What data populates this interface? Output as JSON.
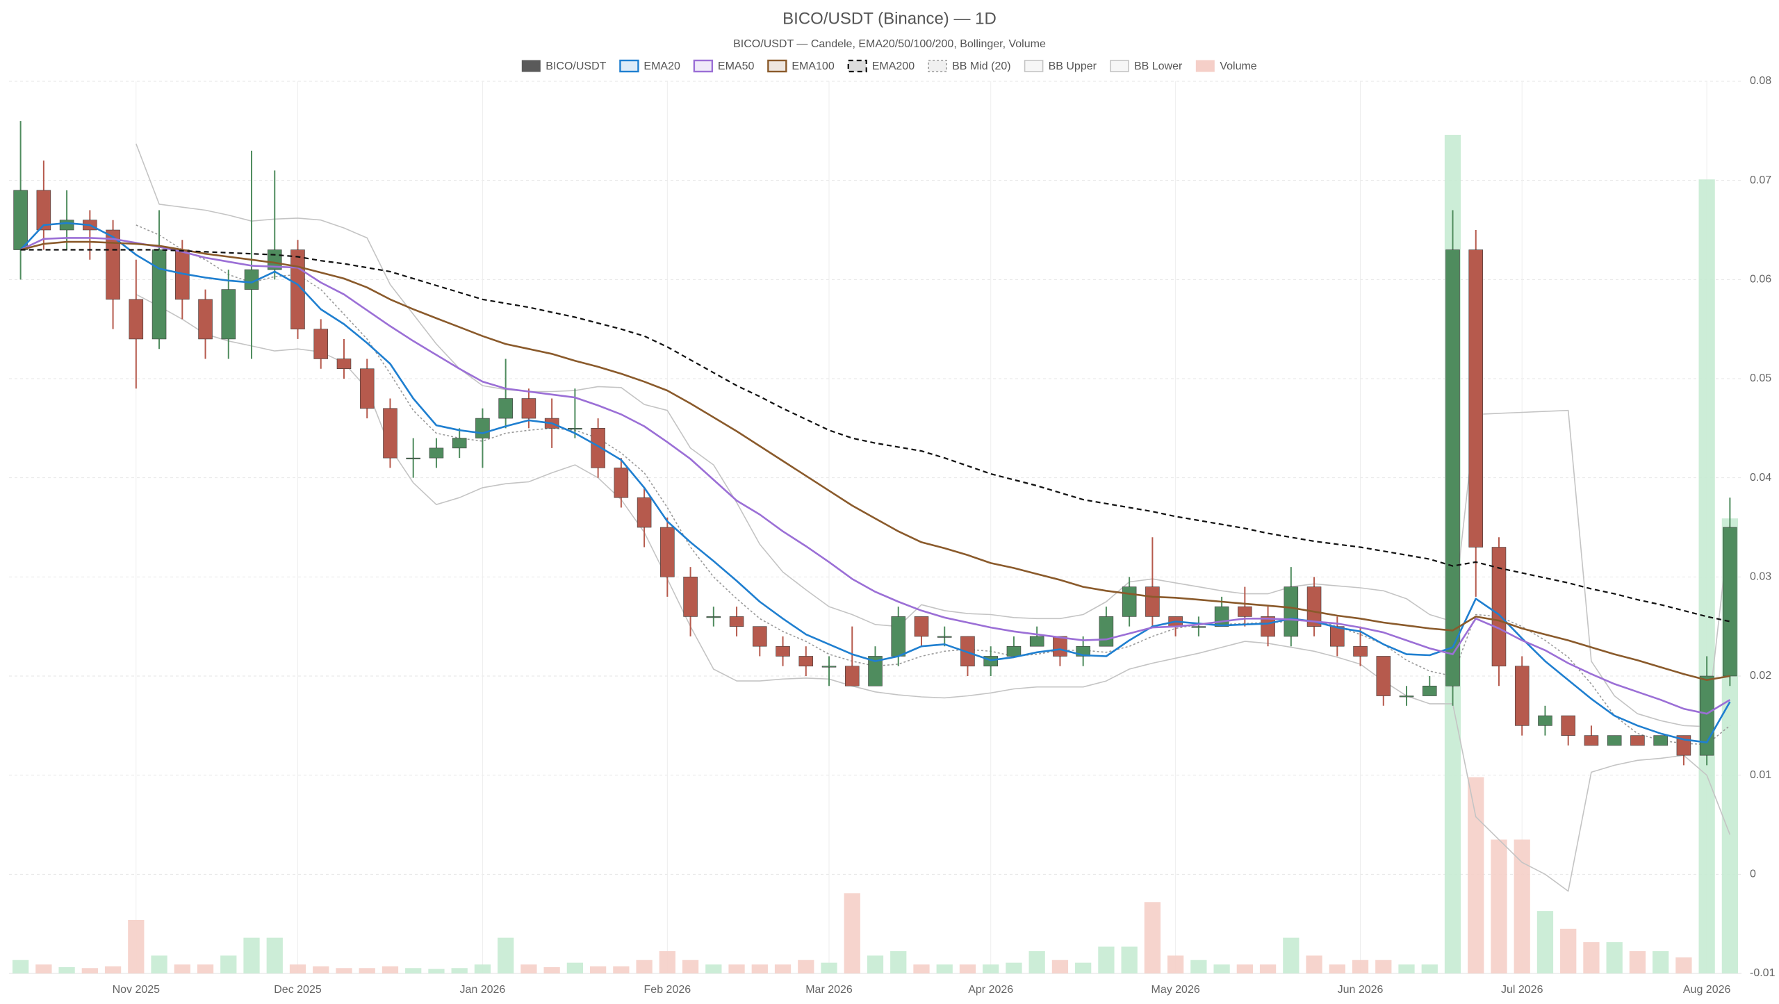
{
  "chart_data": {
    "type": "candlestick",
    "title": "BICO/USDT (Binance) — 1D",
    "subtitle": "BICO/USDT — Candele, EMA20/50/100/200, Bollinger, Volume",
    "legend": "top",
    "grid": true,
    "categories": [
      null,
      null,
      null,
      null,
      null,
      "Nov 2025",
      null,
      null,
      null,
      null,
      null,
      null,
      "Dec 2025",
      null,
      null,
      null,
      null,
      null,
      null,
      null,
      "Jan 2026",
      null,
      null,
      null,
      null,
      null,
      null,
      null,
      "Feb 2026",
      null,
      null,
      null,
      null,
      null,
      null,
      "Mar 2026",
      null,
      null,
      null,
      null,
      null,
      null,
      "Apr 2026",
      null,
      null,
      null,
      null,
      null,
      null,
      null,
      "May 2026",
      null,
      null,
      null,
      null,
      null,
      null,
      null,
      "Jun 2026",
      null,
      null,
      null,
      null,
      null,
      null,
      "Jul 2026",
      null,
      null,
      null,
      null,
      null,
      null,
      null,
      "Aug 2026",
      null
    ],
    "ylim": [
      -0.01,
      0.08
    ],
    "yticks": [
      -0.01,
      0,
      0.01,
      0.02,
      0.03,
      0.04,
      0.05,
      0.06,
      0.07,
      0.08
    ],
    "y2lim": [
      0,
      100
    ],
    "candles": {
      "name": "BICO/USDT",
      "color": "#5a5a5a",
      "up_color": "#4f8c5e",
      "down_color": "#b65a4d",
      "open": [
        0.063,
        0.069,
        0.065,
        0.066,
        0.065,
        0.058,
        0.054,
        0.063,
        0.058,
        0.054,
        0.059,
        0.061,
        0.063,
        0.055,
        0.052,
        0.051,
        0.047,
        0.042,
        0.042,
        0.043,
        0.044,
        0.046,
        0.048,
        0.046,
        0.045,
        0.045,
        0.041,
        0.038,
        0.035,
        0.03,
        0.026,
        0.026,
        0.025,
        0.023,
        0.022,
        0.021,
        0.021,
        0.019,
        0.022,
        0.026,
        0.024,
        0.024,
        0.021,
        0.022,
        0.023,
        0.024,
        0.022,
        0.023,
        0.026,
        0.029,
        0.026,
        0.025,
        0.025,
        0.027,
        0.026,
        0.024,
        0.029,
        0.025,
        0.023,
        0.022,
        0.018,
        0.018,
        0.019,
        0.063,
        0.033,
        0.021,
        0.015,
        0.016,
        0.014,
        0.013,
        0.014,
        0.013,
        0.014,
        0.012,
        0.02
      ],
      "high": [
        0.076,
        0.072,
        0.069,
        0.067,
        0.066,
        0.062,
        0.067,
        0.064,
        0.059,
        0.061,
        0.073,
        0.071,
        0.064,
        0.056,
        0.054,
        0.052,
        0.048,
        0.044,
        0.044,
        0.045,
        0.047,
        0.052,
        0.049,
        0.048,
        0.049,
        0.046,
        0.042,
        0.039,
        0.036,
        0.031,
        0.027,
        0.027,
        0.025,
        0.024,
        0.023,
        0.022,
        0.025,
        0.023,
        0.027,
        0.026,
        0.025,
        0.024,
        0.023,
        0.024,
        0.025,
        0.024,
        0.024,
        0.027,
        0.03,
        0.034,
        0.026,
        0.026,
        0.028,
        0.029,
        0.027,
        0.031,
        0.03,
        0.026,
        0.025,
        0.022,
        0.019,
        0.02,
        0.067,
        0.065,
        0.034,
        0.022,
        0.017,
        0.016,
        0.015,
        0.014,
        0.014,
        0.014,
        0.014,
        0.022,
        0.038
      ],
      "low": [
        0.06,
        0.063,
        0.063,
        0.062,
        0.055,
        0.049,
        0.053,
        0.056,
        0.052,
        0.052,
        0.052,
        0.06,
        0.054,
        0.051,
        0.05,
        0.046,
        0.041,
        0.04,
        0.041,
        0.042,
        0.041,
        0.045,
        0.045,
        0.043,
        0.044,
        0.04,
        0.037,
        0.033,
        0.028,
        0.024,
        0.025,
        0.024,
        0.022,
        0.021,
        0.02,
        0.019,
        0.019,
        0.019,
        0.021,
        0.023,
        0.023,
        0.02,
        0.02,
        0.022,
        0.023,
        0.021,
        0.021,
        0.023,
        0.025,
        0.025,
        0.024,
        0.024,
        0.025,
        0.025,
        0.023,
        0.023,
        0.024,
        0.022,
        0.021,
        0.017,
        0.017,
        0.018,
        0.017,
        0.028,
        0.019,
        0.014,
        0.014,
        0.013,
        0.013,
        0.013,
        0.013,
        0.013,
        0.011,
        0.011,
        0.019
      ],
      "close": [
        0.069,
        0.065,
        0.066,
        0.065,
        0.058,
        0.054,
        0.063,
        0.058,
        0.054,
        0.059,
        0.061,
        0.063,
        0.055,
        0.052,
        0.051,
        0.047,
        0.042,
        0.042,
        0.043,
        0.044,
        0.046,
        0.048,
        0.046,
        0.045,
        0.045,
        0.041,
        0.038,
        0.035,
        0.03,
        0.026,
        0.026,
        0.025,
        0.023,
        0.022,
        0.021,
        0.021,
        0.019,
        0.022,
        0.026,
        0.024,
        0.024,
        0.021,
        0.022,
        0.023,
        0.024,
        0.022,
        0.023,
        0.026,
        0.029,
        0.026,
        0.025,
        0.025,
        0.027,
        0.026,
        0.024,
        0.029,
        0.025,
        0.023,
        0.022,
        0.018,
        0.018,
        0.019,
        0.063,
        0.033,
        0.021,
        0.015,
        0.016,
        0.014,
        0.013,
        0.014,
        0.013,
        0.014,
        0.012,
        0.02,
        0.035
      ]
    },
    "series": [
      {
        "name": "EMA20",
        "color": "#1f7fd0",
        "line_style": "solid",
        "values": [
          0.063,
          0.0655,
          0.0657,
          0.0655,
          0.0643,
          0.0625,
          0.0611,
          0.0606,
          0.0602,
          0.0599,
          0.0597,
          0.0608,
          0.0595,
          0.057,
          0.0555,
          0.0536,
          0.0515,
          0.048,
          0.0453,
          0.0448,
          0.0445,
          0.0452,
          0.0458,
          0.0455,
          0.0445,
          0.0432,
          0.0418,
          0.039,
          0.0356,
          0.0335,
          0.0316,
          0.0296,
          0.0275,
          0.0258,
          0.0242,
          0.0232,
          0.0222,
          0.0215,
          0.022,
          0.023,
          0.0232,
          0.0224,
          0.0216,
          0.0219,
          0.0224,
          0.0227,
          0.0221,
          0.022,
          0.0236,
          0.025,
          0.0255,
          0.0253,
          0.0251,
          0.0252,
          0.0253,
          0.0258,
          0.0255,
          0.0249,
          0.0245,
          0.0232,
          0.0222,
          0.0221,
          0.0229,
          0.0278,
          0.0262,
          0.0238,
          0.0215,
          0.0196,
          0.0177,
          0.016,
          0.015,
          0.0142,
          0.0136,
          0.0133,
          0.0174
        ]
      },
      {
        "name": "EMA50",
        "color": "#9b6fd6",
        "line_style": "solid",
        "values": [
          0.063,
          0.0641,
          0.0642,
          0.0642,
          0.0641,
          0.0637,
          0.0633,
          0.0628,
          0.0622,
          0.0618,
          0.0614,
          0.0613,
          0.0612,
          0.0597,
          0.0585,
          0.0569,
          0.0553,
          0.0538,
          0.0524,
          0.051,
          0.0497,
          0.049,
          0.0487,
          0.0484,
          0.0481,
          0.0473,
          0.0464,
          0.0452,
          0.0436,
          0.0419,
          0.0398,
          0.0377,
          0.0363,
          0.0346,
          0.0331,
          0.0315,
          0.0298,
          0.0285,
          0.0275,
          0.0266,
          0.0259,
          0.0254,
          0.0249,
          0.0245,
          0.0242,
          0.0239,
          0.0236,
          0.0237,
          0.0243,
          0.0249,
          0.025,
          0.0252,
          0.0255,
          0.0258,
          0.0258,
          0.0257,
          0.0255,
          0.0253,
          0.0249,
          0.0244,
          0.0236,
          0.0228,
          0.0222,
          0.0258,
          0.0248,
          0.0236,
          0.0226,
          0.0213,
          0.0202,
          0.0192,
          0.0184,
          0.0176,
          0.0167,
          0.0162,
          0.0176
        ]
      },
      {
        "name": "EMA100",
        "color": "#8a5a2b",
        "line_style": "solid",
        "values": [
          0.063,
          0.0636,
          0.0638,
          0.0638,
          0.0637,
          0.0636,
          0.0634,
          0.063,
          0.0626,
          0.0623,
          0.062,
          0.0617,
          0.0613,
          0.0607,
          0.0601,
          0.0592,
          0.058,
          0.057,
          0.0561,
          0.0552,
          0.0543,
          0.0535,
          0.053,
          0.0525,
          0.0518,
          0.0512,
          0.0505,
          0.0497,
          0.0488,
          0.0475,
          0.0461,
          0.0447,
          0.0432,
          0.0417,
          0.0402,
          0.0387,
          0.0372,
          0.0359,
          0.0346,
          0.0335,
          0.0329,
          0.0322,
          0.0314,
          0.0309,
          0.0303,
          0.0297,
          0.029,
          0.0286,
          0.0283,
          0.028,
          0.0279,
          0.0277,
          0.0275,
          0.0273,
          0.0271,
          0.0269,
          0.0265,
          0.0261,
          0.0258,
          0.0254,
          0.0251,
          0.0248,
          0.0246,
          0.026,
          0.0256,
          0.0248,
          0.0242,
          0.0236,
          0.0229,
          0.0222,
          0.0216,
          0.0209,
          0.0202,
          0.0196,
          0.02
        ]
      },
      {
        "name": "EMA200",
        "color": "#111111",
        "line_style": "dashed",
        "values": [
          0.063,
          0.063,
          0.063,
          0.063,
          0.063,
          0.063,
          0.063,
          0.0629,
          0.0628,
          0.0627,
          0.0626,
          0.0625,
          0.0623,
          0.0619,
          0.0616,
          0.0612,
          0.0608,
          0.0601,
          0.0594,
          0.0587,
          0.058,
          0.0576,
          0.0572,
          0.0567,
          0.0562,
          0.0556,
          0.055,
          0.0543,
          0.0532,
          0.0519,
          0.0506,
          0.0493,
          0.0482,
          0.047,
          0.0459,
          0.0448,
          0.044,
          0.0435,
          0.0431,
          0.0427,
          0.042,
          0.0412,
          0.0404,
          0.0398,
          0.0392,
          0.0385,
          0.0378,
          0.0374,
          0.037,
          0.0366,
          0.0361,
          0.0357,
          0.0353,
          0.0349,
          0.0344,
          0.034,
          0.0336,
          0.0333,
          0.033,
          0.0326,
          0.0322,
          0.0318,
          0.0311,
          0.0315,
          0.0309,
          0.0304,
          0.0299,
          0.0294,
          0.0288,
          0.0283,
          0.0277,
          0.0272,
          0.0266,
          0.026,
          0.0255
        ]
      },
      {
        "name": "BB Mid (20)",
        "color": "#9a9a9a",
        "line_style": "dotted",
        "values": [
          null,
          null,
          null,
          null,
          null,
          0.0655,
          0.0645,
          0.063,
          0.062,
          0.0605,
          0.0597,
          0.0603,
          0.0605,
          0.059,
          0.0565,
          0.054,
          0.0505,
          0.0468,
          0.0445,
          0.044,
          0.0437,
          0.0445,
          0.0448,
          0.045,
          0.0448,
          0.044,
          0.0425,
          0.0405,
          0.037,
          0.033,
          0.03,
          0.0278,
          0.0258,
          0.0245,
          0.0235,
          0.0222,
          0.0215,
          0.021,
          0.0212,
          0.022,
          0.0225,
          0.0227,
          0.0225,
          0.022,
          0.0222,
          0.0226,
          0.0226,
          0.0224,
          0.023,
          0.024,
          0.0248,
          0.0252,
          0.0252,
          0.0253,
          0.0254,
          0.0255,
          0.0257,
          0.025,
          0.0242,
          0.0232,
          0.0216,
          0.0205,
          0.02,
          0.0262,
          0.026,
          0.025,
          0.0236,
          0.0219,
          0.0192,
          0.016,
          0.0142,
          0.0135,
          0.0132,
          0.0131,
          0.015
        ]
      },
      {
        "name": "BB Upper",
        "color": "#c4c4c4",
        "line_style": "thin",
        "values": [
          null,
          null,
          null,
          null,
          null,
          0.0737,
          0.0676,
          0.0673,
          0.067,
          0.0665,
          0.0659,
          0.0661,
          0.0662,
          0.066,
          0.0652,
          0.0642,
          0.0595,
          0.0565,
          0.0535,
          0.051,
          0.0493,
          0.0489,
          0.0487,
          0.0487,
          0.0488,
          0.0492,
          0.0491,
          0.0474,
          0.0468,
          0.043,
          0.0413,
          0.0375,
          0.0333,
          0.0305,
          0.0287,
          0.027,
          0.0262,
          0.0252,
          0.025,
          0.0272,
          0.0266,
          0.0263,
          0.0262,
          0.0259,
          0.0258,
          0.0258,
          0.0262,
          0.0275,
          0.0295,
          0.0298,
          0.0294,
          0.029,
          0.0286,
          0.0283,
          0.0283,
          0.029,
          0.0293,
          0.0291,
          0.0289,
          0.0286,
          0.0278,
          0.0262,
          0.0255,
          0.0464,
          0.0465,
          0.0466,
          0.0467,
          0.0468,
          0.0215,
          0.018,
          0.0162,
          0.0155,
          0.015,
          0.0149,
          0.0356
        ]
      },
      {
        "name": "BB Lower",
        "color": "#c4c4c4",
        "line_style": "thin",
        "values": [
          null,
          null,
          null,
          null,
          null,
          0.0585,
          0.0573,
          0.056,
          0.0545,
          0.0538,
          0.0533,
          0.0528,
          0.053,
          0.0527,
          0.0516,
          0.049,
          0.043,
          0.0395,
          0.0373,
          0.038,
          0.039,
          0.0394,
          0.0396,
          0.0405,
          0.0413,
          0.04,
          0.0378,
          0.0345,
          0.0298,
          0.025,
          0.0207,
          0.0195,
          0.0195,
          0.0197,
          0.0198,
          0.0197,
          0.019,
          0.0184,
          0.0181,
          0.0179,
          0.0178,
          0.018,
          0.0183,
          0.0187,
          0.0189,
          0.0189,
          0.0189,
          0.0195,
          0.0207,
          0.0213,
          0.0218,
          0.0223,
          0.0229,
          0.0235,
          0.0233,
          0.0229,
          0.0225,
          0.0219,
          0.0212,
          0.0195,
          0.018,
          0.0172,
          0.0172,
          0.0058,
          0.0035,
          0.0012,
          0,
          -0.0017,
          0.0103,
          0.011,
          0.0115,
          0.0117,
          0.012,
          0.01,
          0.004
        ]
      }
    ],
    "volume": {
      "name": "Volume",
      "color": "#f5cfc8",
      "up_color": "#c6ebd3",
      "down_color": "#f5cfc8",
      "axis": "y2",
      "values": [
        1.5,
        1,
        0.7,
        0.6,
        0.8,
        6,
        2,
        1,
        1,
        2,
        4,
        4,
        1,
        0.8,
        0.6,
        0.6,
        0.8,
        0.6,
        0.5,
        0.6,
        1,
        4,
        1,
        0.7,
        1.2,
        0.8,
        0.8,
        1.5,
        2.5,
        1.5,
        1,
        1,
        1,
        1,
        1.5,
        1.2,
        9,
        2,
        2.5,
        1,
        1,
        1,
        1,
        1.2,
        2.5,
        1.5,
        1.2,
        3,
        3,
        8,
        2,
        1.5,
        1,
        1,
        1,
        4,
        2,
        1,
        1.5,
        1.5,
        1,
        1,
        94,
        22,
        15,
        15,
        7,
        5,
        3.5,
        3.5,
        2.5,
        2.5,
        1.8,
        89,
        51
      ]
    }
  }
}
